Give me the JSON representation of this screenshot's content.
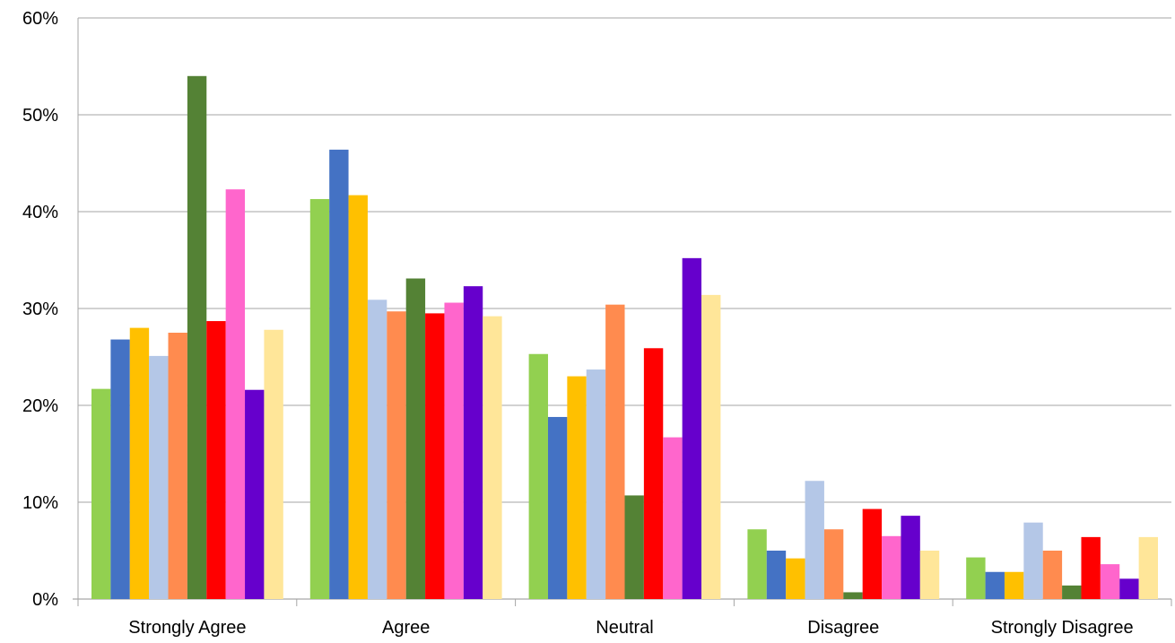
{
  "chart_data": {
    "type": "bar",
    "title": "",
    "xlabel": "",
    "ylabel": "",
    "ylim": [
      0,
      0.6
    ],
    "grid": true,
    "legend": "none",
    "y_ticks": [
      {
        "value": 0.0,
        "label": "0%"
      },
      {
        "value": 0.1,
        "label": "10%"
      },
      {
        "value": 0.2,
        "label": "20%"
      },
      {
        "value": 0.3,
        "label": "30%"
      },
      {
        "value": 0.4,
        "label": "40%"
      },
      {
        "value": 0.5,
        "label": "50%"
      },
      {
        "value": 0.6,
        "label": "60%"
      }
    ],
    "categories": [
      "Strongly Agree",
      "Agree",
      "Neutral",
      "Disagree",
      "Strongly Disagree"
    ],
    "series": [
      {
        "color": "#92D050",
        "values": [
          0.217,
          0.413,
          0.253,
          0.072,
          0.043
        ]
      },
      {
        "color": "#4472C4",
        "values": [
          0.268,
          0.464,
          0.188,
          0.05,
          0.028
        ]
      },
      {
        "color": "#FFC000",
        "values": [
          0.28,
          0.417,
          0.23,
          0.042,
          0.028
        ]
      },
      {
        "color": "#B4C7E7",
        "values": [
          0.251,
          0.309,
          0.237,
          0.122,
          0.079
        ]
      },
      {
        "color": "#FF8B4F",
        "values": [
          0.275,
          0.297,
          0.304,
          0.072,
          0.05
        ]
      },
      {
        "color": "#548235",
        "values": [
          0.54,
          0.331,
          0.107,
          0.007,
          0.014
        ]
      },
      {
        "color": "#FF0000",
        "values": [
          0.287,
          0.295,
          0.259,
          0.093,
          0.064
        ]
      },
      {
        "color": "#FF66CC",
        "values": [
          0.423,
          0.306,
          0.167,
          0.065,
          0.036
        ]
      },
      {
        "color": "#6600CC",
        "values": [
          0.216,
          0.323,
          0.352,
          0.086,
          0.021
        ]
      },
      {
        "color": "#FFE699",
        "values": [
          0.278,
          0.292,
          0.314,
          0.05,
          0.064
        ]
      }
    ]
  }
}
